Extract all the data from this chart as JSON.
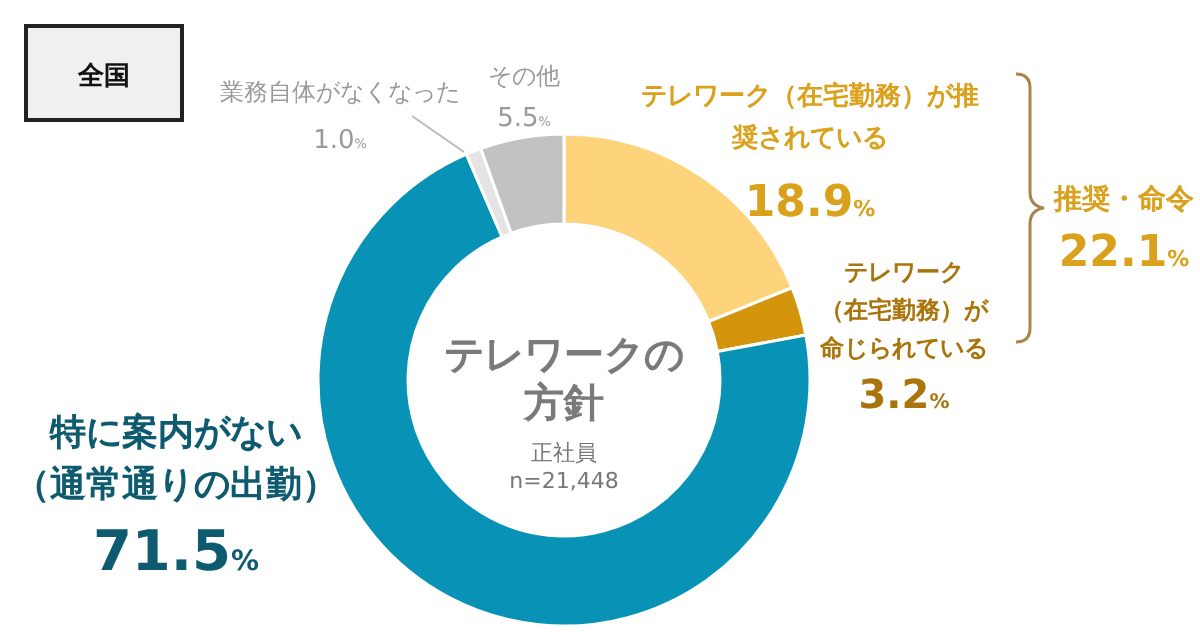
{
  "chart_data": {
    "type": "donut",
    "title": "全国",
    "subtitle": "テレワークの方針",
    "categories": [
      "テレワーク（在宅勤務）が推奨されている",
      "テレワーク（在宅勤務）が命じられている",
      "特に案内がない（通常通りの出勤）",
      "業務自体がなくなった",
      "その他"
    ],
    "values": [
      18.9,
      3.2,
      71.5,
      1.0,
      5.5
    ],
    "colors": [
      "#fdd47c",
      "#d4940b",
      "#0893b6",
      "#e4e4e4",
      "#c2c2c3"
    ],
    "value_labels": [
      "18.9%",
      "3.2%",
      "71.5%",
      "1.0%",
      "5.5%"
    ],
    "annotations": [
      "正社員",
      "n=21,448",
      "推奨・命令",
      "22.1%"
    ]
  }
}
